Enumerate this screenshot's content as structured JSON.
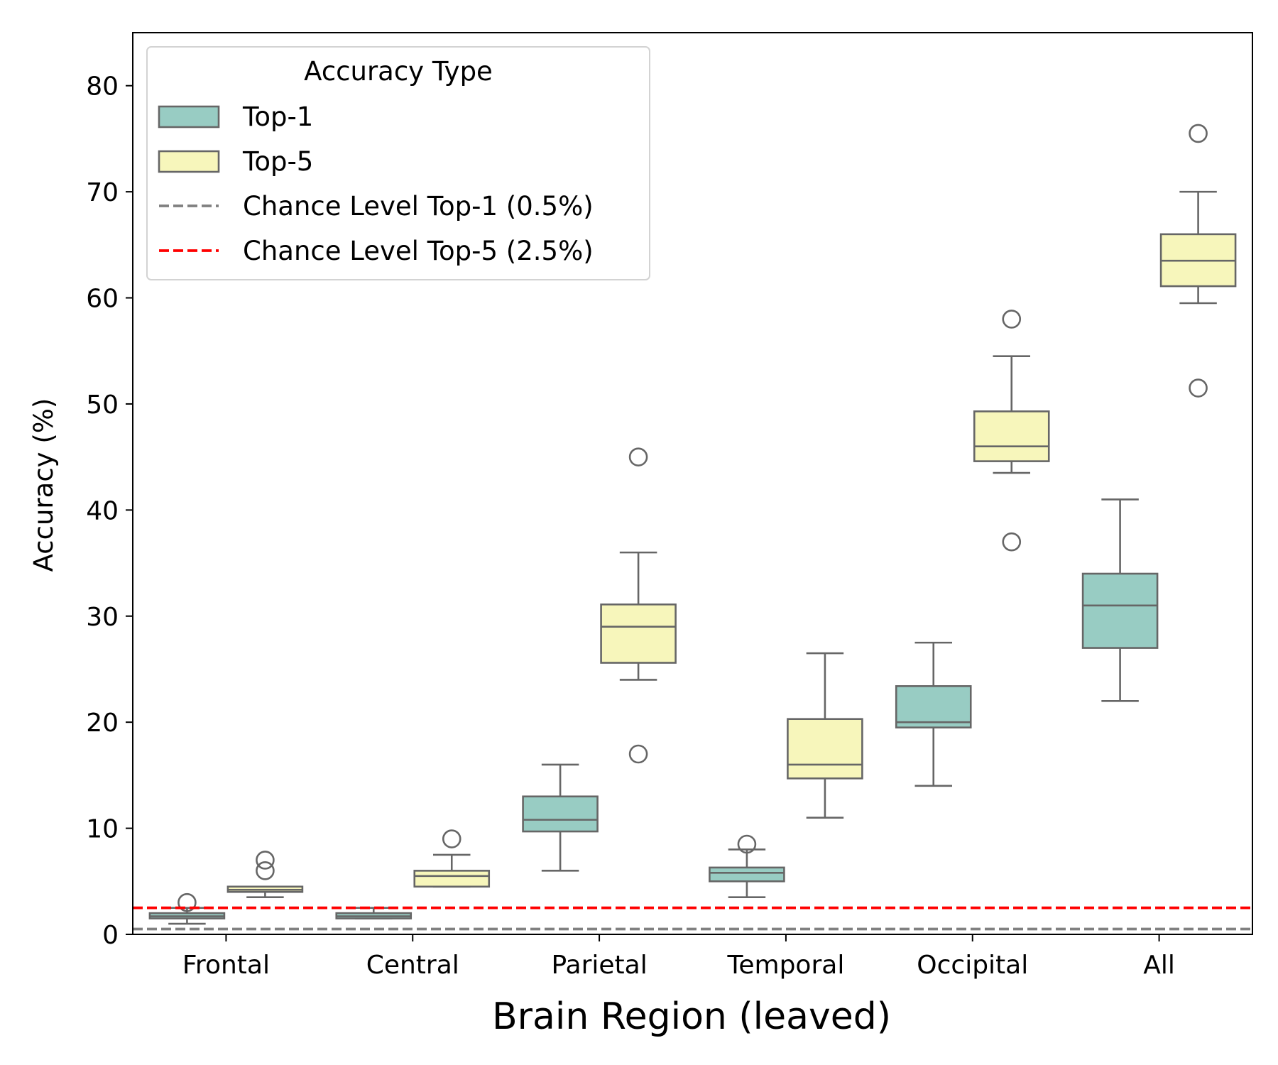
{
  "chart_data": {
    "type": "box",
    "xlabel": "Brain Region (leaved)",
    "ylabel": "Accuracy (%)",
    "ylim": [
      0,
      85
    ],
    "yticks": [
      0,
      10,
      20,
      30,
      40,
      50,
      60,
      70,
      80
    ],
    "categories": [
      "Frontal",
      "Central",
      "Parietal",
      "Temporal",
      "Occipital",
      "All"
    ],
    "legend": {
      "title": "Accuracy Type",
      "position": "top-left",
      "entries": [
        {
          "label": "Top-1",
          "kind": "box",
          "color": "#98ccc3"
        },
        {
          "label": "Top-5",
          "kind": "box",
          "color": "#f7f6bb"
        },
        {
          "label": "Chance Level Top-1 (0.5%)",
          "kind": "dashed-line",
          "color": "#808080"
        },
        {
          "label": "Chance Level Top-5 (2.5%)",
          "kind": "dashed-line",
          "color": "#ff0000"
        }
      ]
    },
    "reference_lines": [
      {
        "name": "Chance Level Top-1 (0.5%)",
        "y": 0.5,
        "color": "#808080"
      },
      {
        "name": "Chance Level Top-5 (2.5%)",
        "y": 2.5,
        "color": "#ff0000"
      }
    ],
    "series": [
      {
        "name": "Top-1",
        "color": "#98ccc3",
        "boxes": [
          {
            "category": "Frontal",
            "whisker_low": 1.0,
            "q1": 1.5,
            "median": 1.7,
            "q3": 2.0,
            "whisker_high": 2.5,
            "outliers": [
              3.0
            ]
          },
          {
            "category": "Central",
            "whisker_low": 1.5,
            "q1": 1.5,
            "median": 1.7,
            "q3": 2.0,
            "whisker_high": 2.5,
            "outliers": []
          },
          {
            "category": "Parietal",
            "whisker_low": 6.0,
            "q1": 9.7,
            "median": 10.8,
            "q3": 13.0,
            "whisker_high": 16.0,
            "outliers": []
          },
          {
            "category": "Temporal",
            "whisker_low": 3.5,
            "q1": 5.0,
            "median": 5.8,
            "q3": 6.3,
            "whisker_high": 8.0,
            "outliers": [
              8.5
            ]
          },
          {
            "category": "Occipital",
            "whisker_low": 14.0,
            "q1": 19.5,
            "median": 20.0,
            "q3": 23.4,
            "whisker_high": 27.5,
            "outliers": []
          },
          {
            "category": "All",
            "whisker_low": 22.0,
            "q1": 27.0,
            "median": 31.0,
            "q3": 34.0,
            "whisker_high": 41.0,
            "outliers": []
          }
        ]
      },
      {
        "name": "Top-5",
        "color": "#f7f6bb",
        "boxes": [
          {
            "category": "Frontal",
            "whisker_low": 3.5,
            "q1": 4.0,
            "median": 4.2,
            "q3": 4.5,
            "whisker_high": 4.5,
            "outliers": [
              6.0,
              7.0
            ]
          },
          {
            "category": "Central",
            "whisker_low": 4.5,
            "q1": 4.5,
            "median": 5.5,
            "q3": 6.0,
            "whisker_high": 7.5,
            "outliers": [
              9.0
            ]
          },
          {
            "category": "Parietal",
            "whisker_low": 24.0,
            "q1": 25.6,
            "median": 29.0,
            "q3": 31.1,
            "whisker_high": 36.0,
            "outliers": [
              17.0,
              45.0
            ]
          },
          {
            "category": "Temporal",
            "whisker_low": 11.0,
            "q1": 14.7,
            "median": 16.0,
            "q3": 20.3,
            "whisker_high": 26.5,
            "outliers": []
          },
          {
            "category": "Occipital",
            "whisker_low": 43.5,
            "q1": 44.6,
            "median": 46.0,
            "q3": 49.3,
            "whisker_high": 54.5,
            "outliers": [
              37.0,
              58.0
            ]
          },
          {
            "category": "All",
            "whisker_low": 59.5,
            "q1": 61.1,
            "median": 63.5,
            "q3": 66.0,
            "whisker_high": 70.0,
            "outliers": [
              51.5,
              75.5
            ]
          }
        ]
      }
    ]
  }
}
